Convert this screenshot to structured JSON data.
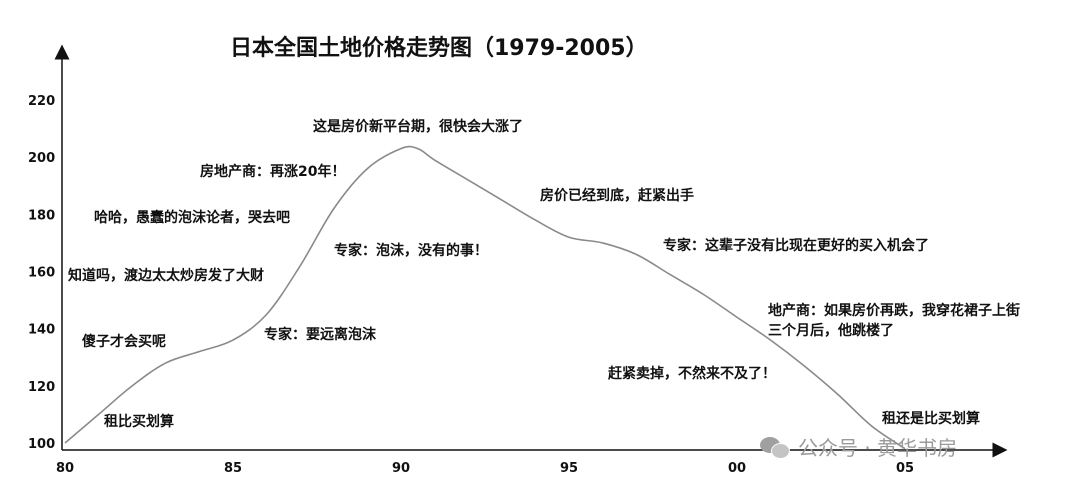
{
  "chart_data": {
    "type": "line",
    "title": "日本全国土地价格走势图（1979-2005）",
    "xlabel": "",
    "ylabel": "",
    "x_ticks": [
      "80",
      "85",
      "90",
      "95",
      "00",
      "05"
    ],
    "y_ticks": [
      "100",
      "120",
      "140",
      "160",
      "180",
      "200",
      "220"
    ],
    "ylim": [
      100,
      220
    ],
    "series": [
      {
        "x": [
          1980,
          1981,
          1982,
          1983,
          1984,
          1985,
          1986,
          1987,
          1988,
          1989,
          1990,
          1990.5,
          1991,
          1992,
          1993,
          1994,
          1995,
          1996,
          1997,
          1998,
          1999,
          2000,
          2001,
          2002,
          2003,
          2004,
          2005
        ],
        "values": [
          100,
          110,
          120,
          128,
          132,
          136,
          145,
          162,
          182,
          196,
          203,
          203,
          199,
          192,
          185,
          178,
          172,
          170,
          166,
          159,
          152,
          144,
          136,
          127,
          117,
          106,
          98
        ]
      }
    ],
    "grid": false,
    "annotations": [
      {
        "id": "a1",
        "text": "租比买划算"
      },
      {
        "id": "a2",
        "text": "傻子才会买呢"
      },
      {
        "id": "a3",
        "text": "知道吗，渡边太太炒房发了大财"
      },
      {
        "id": "a4",
        "text": "哈哈，愚蠢的泡沫论者，哭去吧"
      },
      {
        "id": "a5",
        "text": "专家：要远离泡沫"
      },
      {
        "id": "a6",
        "text": "房地产商：再涨20年！"
      },
      {
        "id": "a7",
        "text": "专家：泡沫，没有的事！"
      },
      {
        "id": "a8",
        "text": "这是房价新平台期，很快会大涨了"
      },
      {
        "id": "a9",
        "text": "房价已经到底，赶紧出手"
      },
      {
        "id": "a10",
        "text": "专家：这辈子没有比现在更好的买入机会了"
      },
      {
        "id": "a11",
        "text": "地产商：如果房价再跌，我穿花裙子上街"
      },
      {
        "id": "a12",
        "text": "三个月后，他跳楼了"
      },
      {
        "id": "a13",
        "text": "赶紧卖掉，不然来不及了！"
      },
      {
        "id": "a14",
        "text": "租还是比买划算"
      }
    ]
  },
  "watermark": {
    "text": "公众号 · 黄华书房",
    "icon": "wechat-icon"
  }
}
